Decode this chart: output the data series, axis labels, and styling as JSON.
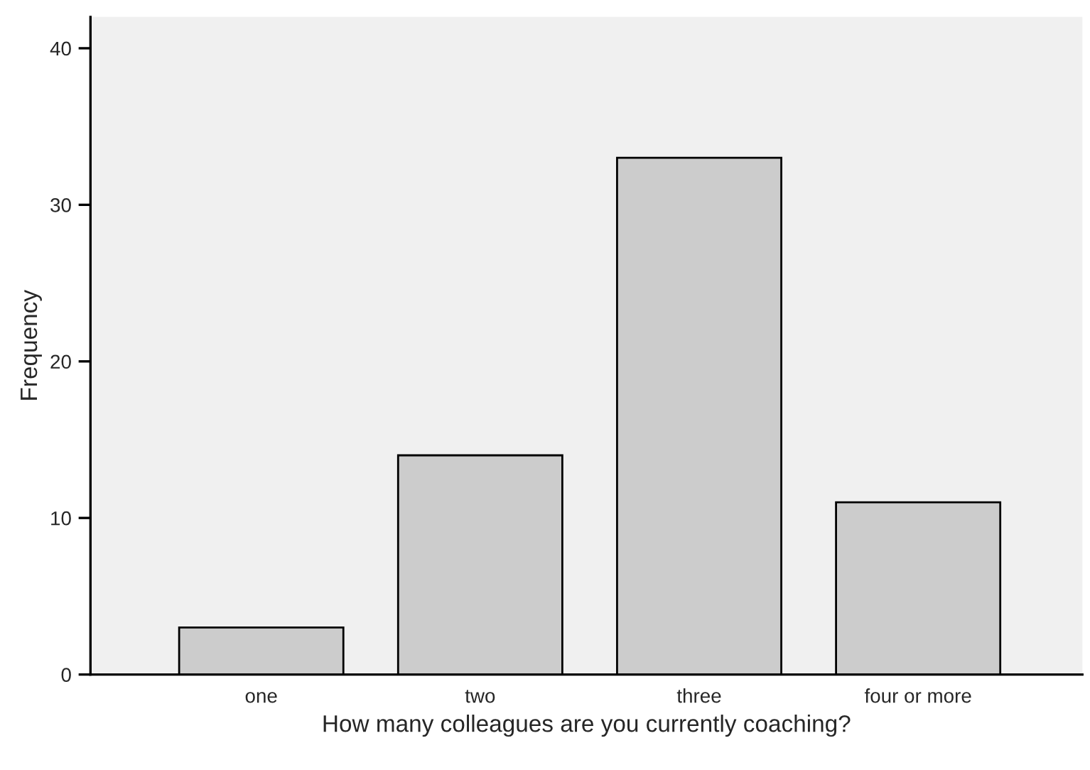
{
  "chart_data": {
    "type": "bar",
    "xlabel": "How many colleagues are you currently coaching?",
    "ylabel": "Frequency",
    "categories": [
      "one",
      "two",
      "three",
      "four or more"
    ],
    "values": [
      3,
      14,
      33,
      11
    ],
    "color": "#cccccc",
    "ylim": [
      0,
      42
    ],
    "yticks": [
      0,
      10,
      20,
      30,
      40
    ],
    "grid": false,
    "legend": false
  }
}
